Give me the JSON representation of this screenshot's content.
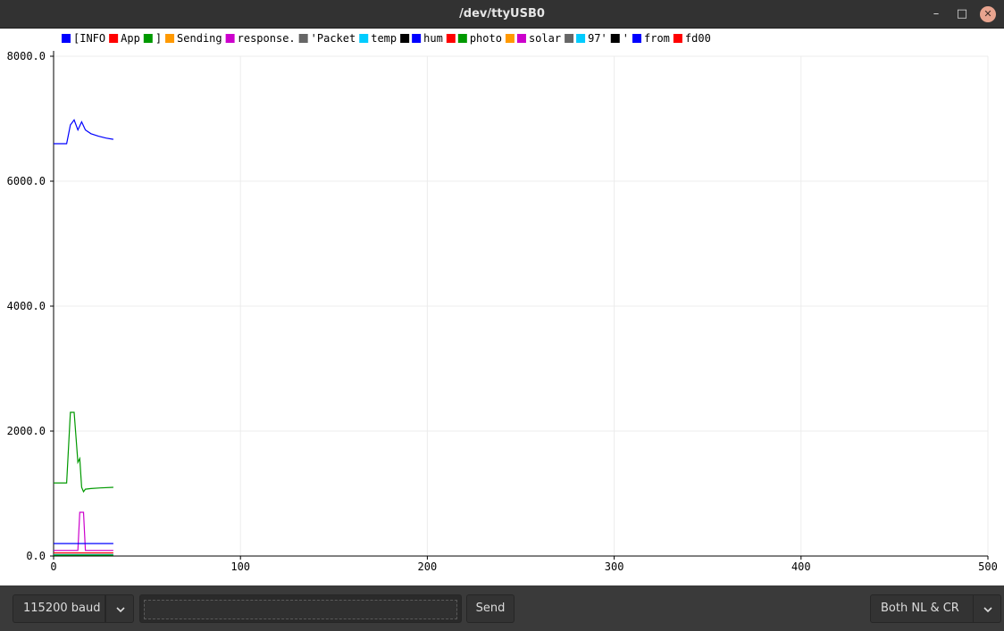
{
  "window": {
    "title": "/dev/ttyUSB0"
  },
  "legend": {
    "entries": [
      {
        "label": "[INFO",
        "color": "#0000ff"
      },
      {
        "label": "App",
        "color": "#ff0000"
      },
      {
        "label": "]",
        "color": "#009900"
      },
      {
        "label": "Sending",
        "color": "#ff9900"
      },
      {
        "label": "response.",
        "color": "#cc00cc"
      },
      {
        "label": "'Packet",
        "color": "#666666"
      },
      {
        "label": "temp",
        "color": "#00ccff"
      },
      {
        "label": "",
        "color": "#000000"
      },
      {
        "label": "hum",
        "color": "#0000ff"
      },
      {
        "label": "",
        "color": "#ff0000"
      },
      {
        "label": "photo",
        "color": "#009900"
      },
      {
        "label": "",
        "color": "#ff9900"
      },
      {
        "label": "solar",
        "color": "#cc00cc"
      },
      {
        "label": "",
        "color": "#666666"
      },
      {
        "label": "97'",
        "color": "#00ccff"
      },
      {
        "label": "'",
        "color": "#000000"
      },
      {
        "label": "from",
        "color": "#0000ff"
      },
      {
        "label": "fd00",
        "color": "#ff0000"
      }
    ]
  },
  "chart_data": {
    "type": "line",
    "xlim": [
      0,
      500
    ],
    "ylim": [
      0,
      8000
    ],
    "x_ticks": [
      "0",
      "100",
      "200",
      "300",
      "400",
      "500"
    ],
    "y_ticks": [
      "0.0",
      "2000.0",
      "4000.0",
      "6000.0",
      "8000.0"
    ],
    "grid": true,
    "legend_position": "top",
    "series": [
      {
        "color": "#0000ff",
        "x": [
          0,
          7,
          9,
          11,
          13,
          15,
          17,
          20,
          24,
          28,
          32
        ],
        "values": [
          6600,
          6600,
          6900,
          6980,
          6820,
          6950,
          6820,
          6760,
          6720,
          6690,
          6670
        ]
      },
      {
        "color": "#009900",
        "x": [
          0,
          7,
          9,
          11,
          13,
          14,
          15,
          16,
          17,
          20,
          25,
          32
        ],
        "values": [
          1170,
          1170,
          2300,
          2300,
          1500,
          1560,
          1100,
          1030,
          1070,
          1080,
          1090,
          1100
        ]
      },
      {
        "color": "#cc00cc",
        "x": [
          0,
          13,
          14,
          16,
          17,
          32
        ],
        "values": [
          90,
          90,
          700,
          700,
          90,
          90
        ]
      },
      {
        "color": "#0000ff",
        "x": [
          0,
          32
        ],
        "values": [
          200,
          200
        ]
      },
      {
        "color": "#ff0000",
        "x": [
          0,
          32
        ],
        "values": [
          50,
          50
        ]
      },
      {
        "color": "#00ccff",
        "x": [
          0,
          32
        ],
        "values": [
          25,
          25
        ]
      },
      {
        "color": "#009900",
        "x": [
          0,
          32
        ],
        "values": [
          15,
          15
        ]
      }
    ]
  },
  "controls": {
    "baud": "115200 baud",
    "message_placeholder": "",
    "send_label": "Send",
    "line_ending": "Both NL & CR"
  }
}
